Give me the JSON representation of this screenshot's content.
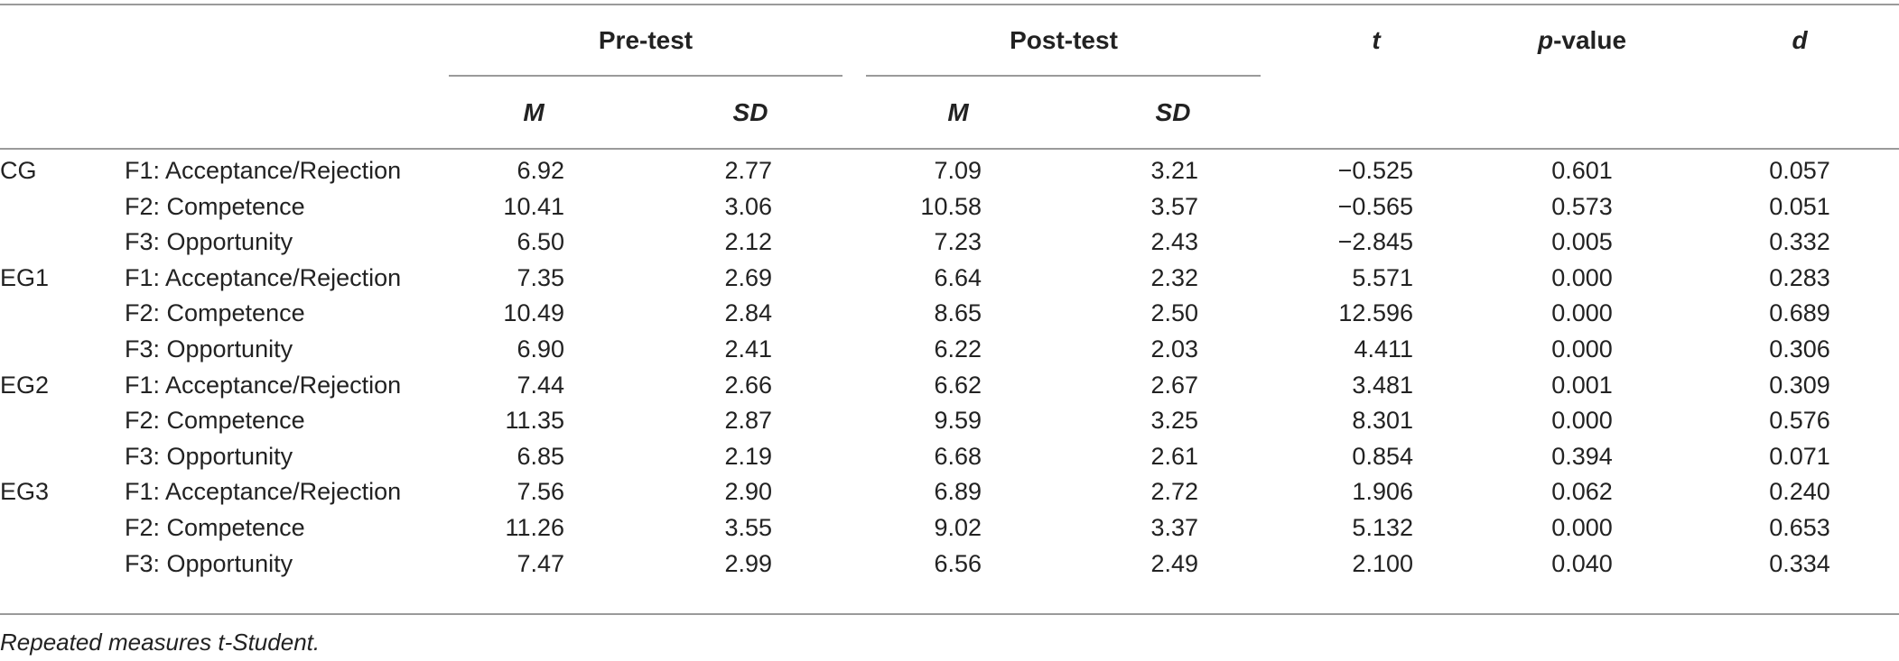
{
  "table": {
    "header": {
      "pre_test": "Pre-test",
      "post_test": "Post-test",
      "t": "t",
      "p_value_p": "p",
      "p_value_rest": "-value",
      "d": "d",
      "pre_m": "M",
      "pre_sd": "SD",
      "post_m": "M",
      "post_sd": "SD"
    },
    "rows": [
      {
        "group": "CG",
        "factor": "F1: Acceptance/Rejection",
        "pre_m": "6.92",
        "pre_sd": "2.77",
        "post_m": "7.09",
        "post_sd": "3.21",
        "t": "−0.525",
        "p": "0.601",
        "d": "0.057"
      },
      {
        "group": "",
        "factor": "F2: Competence",
        "pre_m": "10.41",
        "pre_sd": "3.06",
        "post_m": "10.58",
        "post_sd": "3.57",
        "t": "−0.565",
        "p": "0.573",
        "d": "0.051"
      },
      {
        "group": "",
        "factor": "F3: Opportunity",
        "pre_m": "6.50",
        "pre_sd": "2.12",
        "post_m": "7.23",
        "post_sd": "2.43",
        "t": "−2.845",
        "p": "0.005",
        "d": "0.332"
      },
      {
        "group": "EG1",
        "factor": "F1: Acceptance/Rejection",
        "pre_m": "7.35",
        "pre_sd": "2.69",
        "post_m": "6.64",
        "post_sd": "2.32",
        "t": "5.571",
        "p": "0.000",
        "d": "0.283"
      },
      {
        "group": "",
        "factor": "F2: Competence",
        "pre_m": "10.49",
        "pre_sd": "2.84",
        "post_m": "8.65",
        "post_sd": "2.50",
        "t": "12.596",
        "p": "0.000",
        "d": "0.689"
      },
      {
        "group": "",
        "factor": "F3: Opportunity",
        "pre_m": "6.90",
        "pre_sd": "2.41",
        "post_m": "6.22",
        "post_sd": "2.03",
        "t": "4.411",
        "p": "0.000",
        "d": "0.306"
      },
      {
        "group": "EG2",
        "factor": "F1: Acceptance/Rejection",
        "pre_m": "7.44",
        "pre_sd": "2.66",
        "post_m": "6.62",
        "post_sd": "2.67",
        "t": "3.481",
        "p": "0.001",
        "d": "0.309"
      },
      {
        "group": "",
        "factor": "F2: Competence",
        "pre_m": "11.35",
        "pre_sd": "2.87",
        "post_m": "9.59",
        "post_sd": "3.25",
        "t": "8.301",
        "p": "0.000",
        "d": "0.576"
      },
      {
        "group": "",
        "factor": "F3: Opportunity",
        "pre_m": "6.85",
        "pre_sd": "2.19",
        "post_m": "6.68",
        "post_sd": "2.61",
        "t": "0.854",
        "p": "0.394",
        "d": "0.071"
      },
      {
        "group": "EG3",
        "factor": "F1: Acceptance/Rejection",
        "pre_m": "7.56",
        "pre_sd": "2.90",
        "post_m": "6.89",
        "post_sd": "2.72",
        "t": "1.906",
        "p": "0.062",
        "d": "0.240"
      },
      {
        "group": "",
        "factor": "F2: Competence",
        "pre_m": "11.26",
        "pre_sd": "3.55",
        "post_m": "9.02",
        "post_sd": "3.37",
        "t": "5.132",
        "p": "0.000",
        "d": "0.653"
      },
      {
        "group": "",
        "factor": "F3: Opportunity",
        "pre_m": "7.47",
        "pre_sd": "2.99",
        "post_m": "6.56",
        "post_sd": "2.49",
        "t": "2.100",
        "p": "0.040",
        "d": "0.334"
      }
    ],
    "footnote": "Repeated measures t-Student."
  }
}
